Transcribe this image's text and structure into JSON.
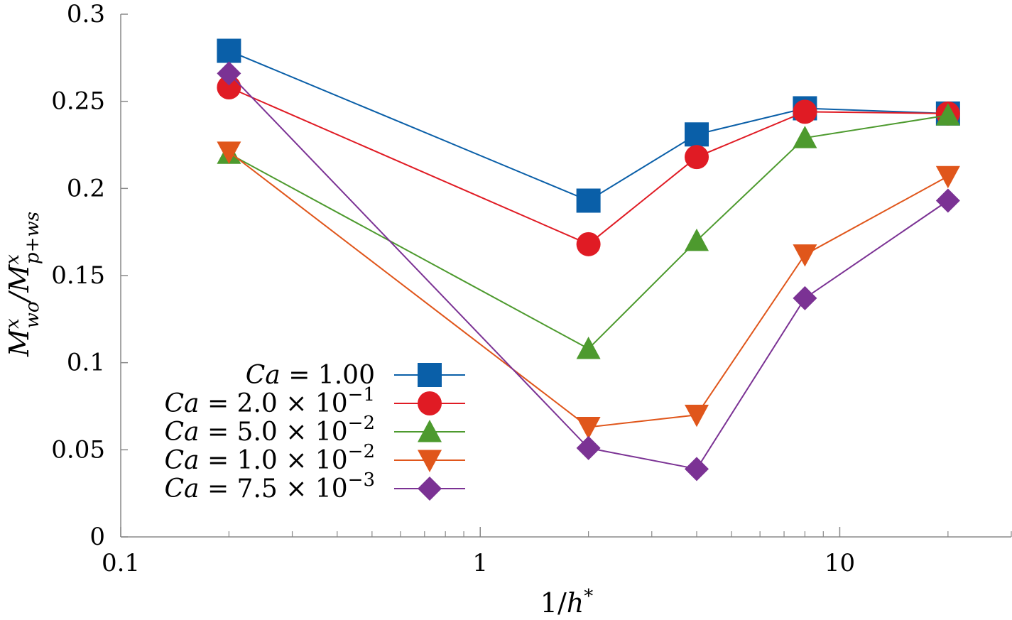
{
  "chart_data": {
    "type": "line",
    "xscale": "log",
    "xlim": [
      0.1,
      30
    ],
    "ylim": [
      0,
      0.3
    ],
    "xlabel": "1/h*",
    "ylabel": "M^x_wo / M^x_p+ws",
    "x_ticks": [
      {
        "value": 0.1,
        "label": "0.1"
      },
      {
        "value": 1,
        "label": "1"
      },
      {
        "value": 10,
        "label": "10"
      }
    ],
    "y_ticks": [
      {
        "value": 0,
        "label": "0"
      },
      {
        "value": 0.05,
        "label": "0.05"
      },
      {
        "value": 0.1,
        "label": "0.1"
      },
      {
        "value": 0.15,
        "label": "0.15"
      },
      {
        "value": 0.2,
        "label": "0.2"
      },
      {
        "value": 0.25,
        "label": "0.25"
      },
      {
        "value": 0.3,
        "label": "0.3"
      }
    ],
    "x": [
      0.2,
      2,
      4,
      8,
      20
    ],
    "series": [
      {
        "name": "Ca = 1.00",
        "name_main": "Ca = 1.00",
        "name_exp": "",
        "color": "#0a5fa8",
        "marker": "square",
        "values": [
          0.279,
          0.193,
          0.231,
          0.246,
          0.243
        ]
      },
      {
        "name": "Ca = 2.0 × 10^-1",
        "name_main": "Ca = 2.0 × 10",
        "name_exp": "−1",
        "color": "#e01b24",
        "marker": "circle",
        "values": [
          0.258,
          0.168,
          0.218,
          0.244,
          0.243
        ]
      },
      {
        "name": "Ca = 5.0 × 10^-2",
        "name_main": "Ca = 5.0 × 10",
        "name_exp": "−2",
        "color": "#4d9a2e",
        "marker": "triangle-up",
        "values": [
          0.22,
          0.108,
          0.17,
          0.229,
          0.242
        ]
      },
      {
        "name": "Ca = 1.0 × 10^-2",
        "name_main": "Ca = 1.0 × 10",
        "name_exp": "−2",
        "color": "#e0561b",
        "marker": "triangle-down",
        "values": [
          0.221,
          0.063,
          0.07,
          0.162,
          0.207
        ]
      },
      {
        "name": "Ca = 7.5 × 10^-3",
        "name_main": "Ca = 7.5 × 10",
        "name_exp": "−3",
        "color": "#7b3294",
        "marker": "diamond",
        "values": [
          0.266,
          0.051,
          0.039,
          0.137,
          0.193
        ]
      }
    ],
    "legend_position": "lower-left",
    "grid": false
  }
}
